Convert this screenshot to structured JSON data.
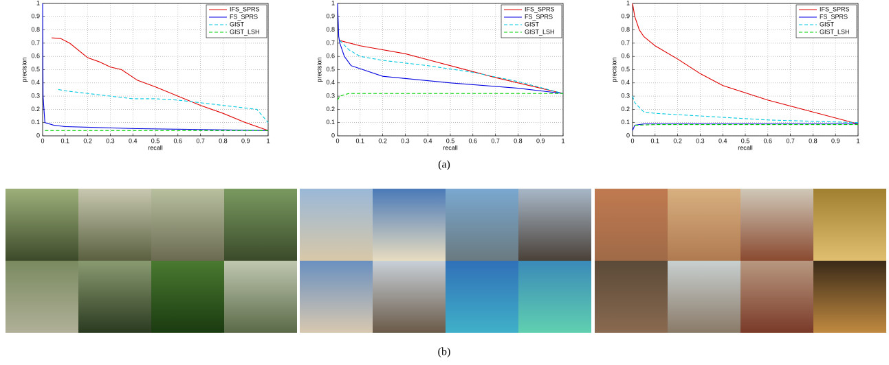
{
  "chart_data": [
    {
      "type": "line",
      "xlabel": "recall",
      "ylabel": "precision",
      "xlim": [
        0,
        1
      ],
      "ylim": [
        0,
        1
      ],
      "xticks": [
        0,
        0.1,
        0.2,
        0.3,
        0.4,
        0.5,
        0.6,
        0.7,
        0.8,
        0.9,
        1
      ],
      "yticks": [
        0,
        0.1,
        0.2,
        0.3,
        0.4,
        0.5,
        0.6,
        0.7,
        0.8,
        0.9,
        1
      ],
      "grid": true,
      "legend": "upper right",
      "series": [
        {
          "name": "IFS_SPRS",
          "color": "#e00000",
          "dash": false,
          "x": [
            0.04,
            0.08,
            0.12,
            0.2,
            0.25,
            0.3,
            0.35,
            0.42,
            0.5,
            0.6,
            0.7,
            0.8,
            0.9,
            1.0
          ],
          "values": [
            0.74,
            0.735,
            0.7,
            0.59,
            0.56,
            0.52,
            0.5,
            0.42,
            0.37,
            0.3,
            0.23,
            0.17,
            0.1,
            0.04
          ]
        },
        {
          "name": "FS_SPRS",
          "color": "#0000e0",
          "dash": false,
          "x": [
            0,
            0.002,
            0.01,
            0.05,
            0.1,
            0.2,
            0.4,
            0.6,
            0.8,
            1.0
          ],
          "values": [
            1,
            0.3,
            0.1,
            0.08,
            0.07,
            0.065,
            0.055,
            0.05,
            0.045,
            0.04
          ]
        },
        {
          "name": "GIST",
          "color": "#00c8e0",
          "dash": true,
          "x": [
            0.07,
            0.1,
            0.2,
            0.3,
            0.4,
            0.5,
            0.6,
            0.7,
            0.8,
            0.9,
            0.95,
            1.0
          ],
          "values": [
            0.35,
            0.34,
            0.32,
            0.3,
            0.28,
            0.28,
            0.27,
            0.25,
            0.23,
            0.21,
            0.2,
            0.1
          ]
        },
        {
          "name": "GIST_LSH",
          "color": "#00d000",
          "dash": true,
          "x": [
            0.01,
            0.2,
            0.5,
            1.0
          ],
          "values": [
            0.04,
            0.04,
            0.04,
            0.04
          ]
        }
      ]
    },
    {
      "type": "line",
      "xlabel": "recall",
      "ylabel": "precision",
      "xlim": [
        0,
        1
      ],
      "ylim": [
        0,
        1
      ],
      "xticks": [
        0,
        0.1,
        0.2,
        0.3,
        0.4,
        0.5,
        0.6,
        0.7,
        0.8,
        0.9,
        1
      ],
      "yticks": [
        0,
        0.1,
        0.2,
        0.3,
        0.4,
        0.5,
        0.6,
        0.7,
        0.8,
        0.9,
        1
      ],
      "grid": true,
      "legend": "upper right",
      "series": [
        {
          "name": "IFS_SPRS",
          "color": "#e00000",
          "dash": false,
          "x": [
            0.01,
            0.1,
            0.3,
            0.5,
            0.7,
            1.0
          ],
          "values": [
            0.72,
            0.68,
            0.62,
            0.53,
            0.44,
            0.32
          ]
        },
        {
          "name": "FS_SPRS",
          "color": "#0000e0",
          "dash": false,
          "x": [
            0,
            0.005,
            0.01,
            0.03,
            0.06,
            0.2,
            0.5,
            0.8,
            1.0
          ],
          "values": [
            1,
            0.75,
            0.7,
            0.6,
            0.53,
            0.45,
            0.4,
            0.36,
            0.32
          ]
        },
        {
          "name": "GIST",
          "color": "#00c8e0",
          "dash": true,
          "x": [
            0.01,
            0.05,
            0.1,
            0.2,
            0.4,
            0.6,
            0.8,
            1.0
          ],
          "values": [
            0.72,
            0.65,
            0.6,
            0.57,
            0.53,
            0.48,
            0.41,
            0.32
          ]
        },
        {
          "name": "GIST_LSH",
          "color": "#00d000",
          "dash": true,
          "x": [
            0,
            0.01,
            0.05,
            0.2,
            0.5,
            1.0
          ],
          "values": [
            0.27,
            0.3,
            0.32,
            0.32,
            0.32,
            0.32
          ]
        }
      ]
    },
    {
      "type": "line",
      "xlabel": "recall",
      "ylabel": "precision",
      "xlim": [
        0,
        1
      ],
      "ylim": [
        0,
        1
      ],
      "xticks": [
        0,
        0.1,
        0.2,
        0.3,
        0.4,
        0.5,
        0.6,
        0.7,
        0.8,
        0.9,
        1
      ],
      "yticks": [
        0,
        0.1,
        0.2,
        0.3,
        0.4,
        0.5,
        0.6,
        0.7,
        0.8,
        0.9,
        1
      ],
      "grid": true,
      "legend": "upper right",
      "series": [
        {
          "name": "IFS_SPRS",
          "color": "#e00000",
          "dash": false,
          "x": [
            0,
            0.01,
            0.03,
            0.05,
            0.1,
            0.2,
            0.3,
            0.4,
            0.6,
            0.8,
            1.0
          ],
          "values": [
            1,
            0.9,
            0.8,
            0.75,
            0.68,
            0.58,
            0.47,
            0.38,
            0.27,
            0.18,
            0.09
          ]
        },
        {
          "name": "FS_SPRS",
          "color": "#0000e0",
          "dash": false,
          "x": [
            0,
            0.01,
            0.05,
            0.2,
            0.5,
            1.0
          ],
          "values": [
            0.04,
            0.08,
            0.09,
            0.09,
            0.09,
            0.09
          ]
        },
        {
          "name": "GIST",
          "color": "#00c8e0",
          "dash": true,
          "x": [
            0,
            0.01,
            0.05,
            0.1,
            0.3,
            0.6,
            1.0
          ],
          "values": [
            0.3,
            0.25,
            0.18,
            0.17,
            0.15,
            0.12,
            0.1
          ]
        },
        {
          "name": "GIST_LSH",
          "color": "#00d000",
          "dash": true,
          "x": [
            0.01,
            0.1,
            0.5,
            1.0
          ],
          "values": [
            0.08,
            0.085,
            0.085,
            0.085
          ]
        }
      ]
    }
  ],
  "captions": [
    "(a)",
    "(b)"
  ]
}
